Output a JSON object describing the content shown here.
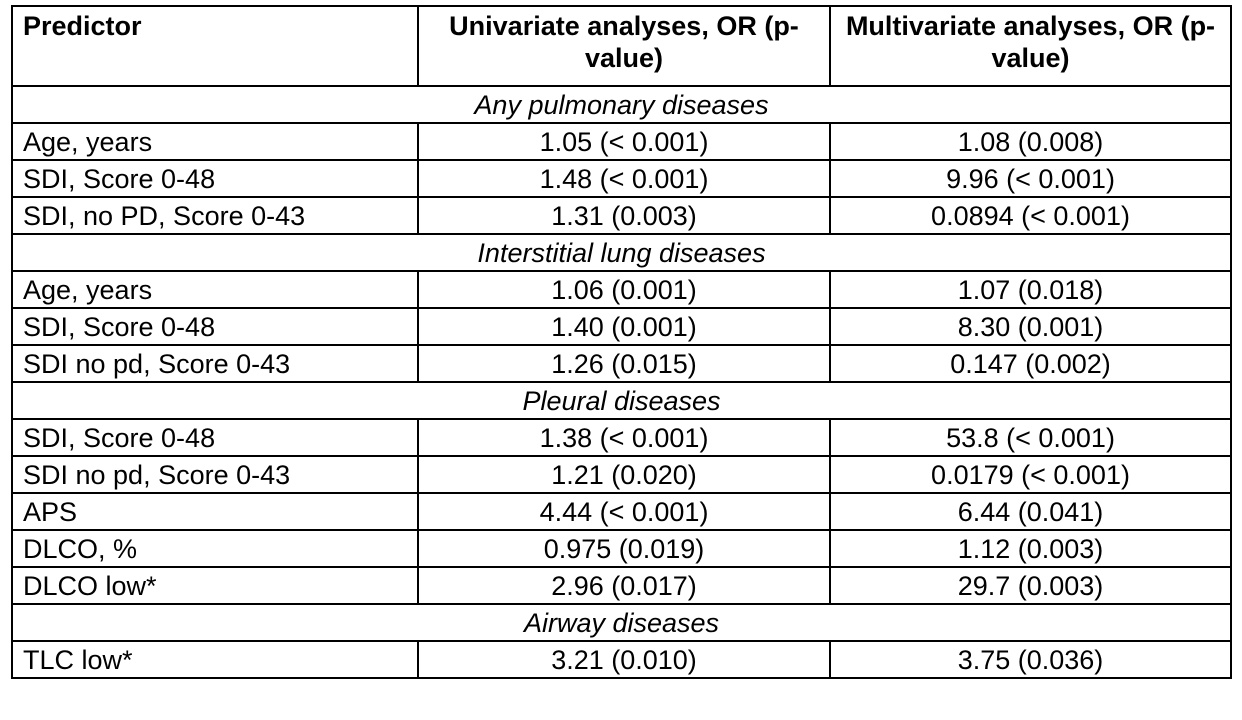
{
  "table": {
    "headers": {
      "predictor": "Predictor",
      "univariate": "Univariate analyses, OR (p-value)",
      "multivariate": "Multivariate analyses, OR (p-value)"
    },
    "sections": [
      {
        "title": "Any pulmonary diseases",
        "rows": [
          {
            "predictor": "Age, years",
            "univariate": "1.05 (< 0.001)",
            "multivariate": "1.08 (0.008)"
          },
          {
            "predictor": "SDI, Score 0-48",
            "univariate": "1.48 (< 0.001)",
            "multivariate": "9.96 (< 0.001)"
          },
          {
            "predictor": "SDI, no PD, Score 0-43",
            "univariate": "1.31 (0.003)",
            "multivariate": "0.0894 (< 0.001)"
          }
        ]
      },
      {
        "title": "Interstitial lung diseases",
        "rows": [
          {
            "predictor": "Age, years",
            "univariate": "1.06 (0.001)",
            "multivariate": "1.07 (0.018)"
          },
          {
            "predictor": "SDI, Score 0-48",
            "univariate": "1.40 (0.001)",
            "multivariate": "8.30 (0.001)"
          },
          {
            "predictor": "SDI no pd, Score 0-43",
            "univariate": "1.26 (0.015)",
            "multivariate": "0.147 (0.002)"
          }
        ]
      },
      {
        "title": "Pleural diseases",
        "rows": [
          {
            "predictor": "SDI, Score 0-48",
            "univariate": "1.38 (< 0.001)",
            "multivariate": "53.8 (< 0.001)"
          },
          {
            "predictor": "SDI no pd, Score 0-43",
            "univariate": "1.21 (0.020)",
            "multivariate": "0.0179 (< 0.001)"
          },
          {
            "predictor": "APS",
            "univariate": "4.44 (< 0.001)",
            "multivariate": "6.44 (0.041)"
          },
          {
            "predictor": "DLCO, %",
            "univariate": "0.975 (0.019)",
            "multivariate": "1.12 (0.003)"
          },
          {
            "predictor": "DLCO low*",
            "univariate": "2.96 (0.017)",
            "multivariate": "29.7 (0.003)"
          }
        ]
      },
      {
        "title": "Airway diseases",
        "rows": [
          {
            "predictor": "TLC low*",
            "univariate": "3.21 (0.010)",
            "multivariate": "3.75 (0.036)"
          }
        ]
      }
    ]
  }
}
